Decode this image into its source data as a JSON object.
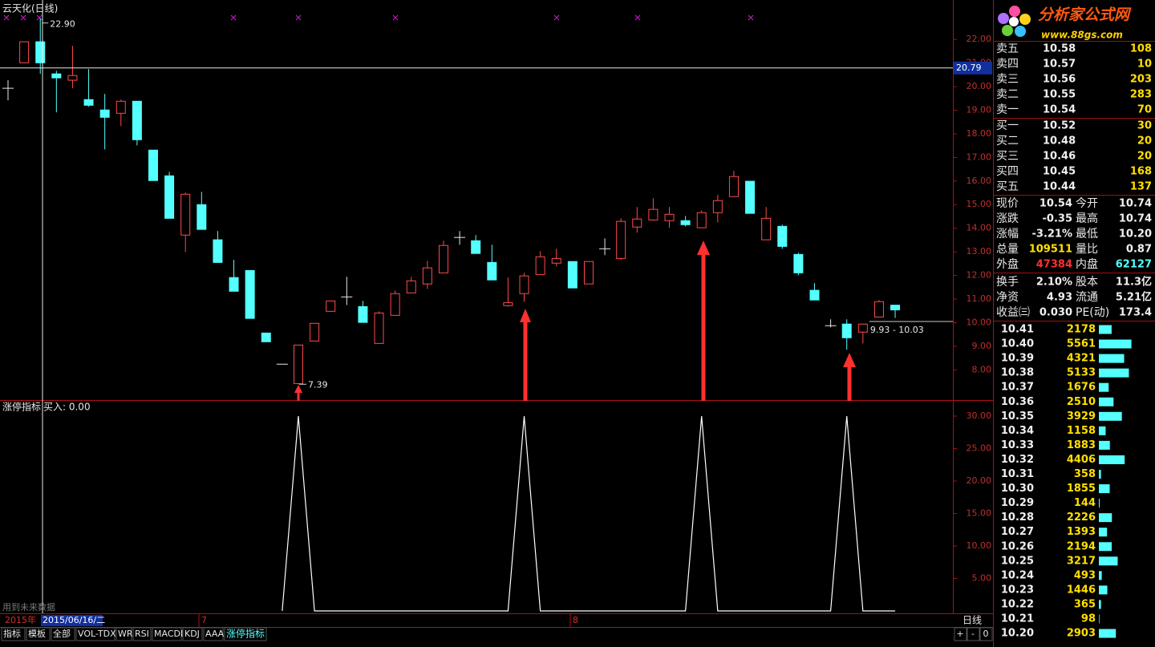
{
  "chart_data": [
    {
      "type": "candlestick",
      "title": "云天化(日线)",
      "open": [
        19.93,
        21.01,
        21.9,
        20.54,
        20.27,
        19.45,
        19.01,
        18.87,
        19.38,
        17.31,
        16.22,
        13.71,
        15.0,
        13.51,
        11.91,
        12.21,
        9.56,
        8.24,
        7.42,
        9.22,
        10.48,
        11.09,
        10.68,
        9.12,
        10.31,
        11.26,
        11.64,
        12.11,
        13.61,
        13.47,
        12.55,
        10.72,
        11.23,
        12.04,
        12.52,
        12.59,
        11.64,
        13.13,
        12.72,
        14.05,
        14.35,
        14.32,
        14.32,
        14.02,
        14.66,
        15.34,
        15.99,
        13.51,
        14.08,
        12.89,
        11.37,
        9.87,
        9.94,
        9.6,
        10.24,
        10.74
      ],
      "high": [
        20.27,
        21.9,
        22.9,
        20.67,
        21.73,
        20.74,
        19.69,
        19.45,
        19.38,
        17.31,
        16.39,
        15.51,
        15.54,
        13.88,
        12.66,
        12.21,
        9.56,
        8.24,
        9.05,
        9.97,
        10.92,
        11.94,
        10.92,
        10.48,
        11.36,
        11.94,
        12.62,
        13.47,
        13.88,
        13.71,
        13.3,
        11.91,
        12.11,
        13.03,
        13.13,
        12.59,
        12.59,
        13.57,
        14.42,
        14.9,
        15.27,
        14.9,
        14.52,
        14.76,
        15.41,
        16.43,
        15.99,
        14.9,
        14.15,
        12.96,
        11.67,
        10.14,
        10.14,
        9.94,
        10.96,
        10.74
      ],
      "low": [
        19.42,
        21.01,
        20.54,
        18.91,
        19.93,
        19.15,
        17.34,
        18.33,
        17.51,
        16.02,
        14.42,
        13.0,
        13.95,
        12.55,
        11.33,
        10.18,
        9.19,
        8.24,
        7.39,
        9.22,
        10.48,
        10.75,
        10.01,
        9.12,
        10.31,
        11.26,
        11.43,
        12.11,
        13.3,
        12.93,
        11.81,
        10.68,
        10.89,
        12.04,
        12.38,
        11.47,
        11.64,
        12.86,
        12.66,
        13.81,
        14.32,
        14.02,
        14.08,
        14.02,
        14.25,
        15.34,
        14.63,
        13.51,
        13.13,
        12.01,
        10.96,
        9.8,
        8.85,
        9.12,
        10.24,
        10.2
      ],
      "close": [
        19.93,
        21.9,
        21.01,
        20.37,
        20.47,
        19.21,
        18.7,
        19.38,
        17.75,
        16.02,
        14.42,
        15.44,
        13.95,
        12.55,
        11.33,
        10.18,
        9.19,
        8.24,
        9.05,
        9.97,
        10.92,
        11.09,
        10.01,
        10.41,
        11.23,
        11.77,
        12.32,
        13.27,
        13.61,
        12.93,
        11.81,
        10.85,
        11.98,
        12.79,
        12.72,
        11.47,
        12.59,
        13.13,
        14.29,
        14.39,
        14.8,
        14.59,
        14.15,
        14.66,
        15.17,
        16.19,
        14.63,
        14.42,
        13.23,
        12.11,
        10.96,
        9.87,
        9.36,
        9.94,
        10.89,
        10.54
      ],
      "up_color": "#ff4a4a",
      "down_color": "#54ffff",
      "flat_color": "#e8e8e8",
      "ylim": [
        6.72,
        23.5
      ],
      "yticks": [
        {
          "value": 8,
          "label": "8.00"
        },
        {
          "value": 9,
          "label": "9.00"
        },
        {
          "value": 10,
          "label": "10.00"
        },
        {
          "value": 11,
          "label": "11.00"
        },
        {
          "value": 12,
          "label": "12.00"
        },
        {
          "value": 13,
          "label": "13.00"
        },
        {
          "value": 14,
          "label": "14.00"
        },
        {
          "value": 15,
          "label": "15.00"
        },
        {
          "value": 16,
          "label": "16.00"
        },
        {
          "value": 17,
          "label": "17.00"
        },
        {
          "value": 18,
          "label": "18.00"
        },
        {
          "value": 19,
          "label": "19.00"
        },
        {
          "value": 20,
          "label": "20.00"
        },
        {
          "value": 21,
          "label": "21.00"
        },
        {
          "value": 22,
          "label": "22.00"
        }
      ],
      "crosshair": {
        "value": 20.79,
        "label": "20.79"
      },
      "annotations": [
        "22.90",
        "7.39",
        "9.93 - 10.03"
      ]
    },
    {
      "type": "line",
      "title": "涨停指标",
      "legend": "买入: 0.00",
      "series": [
        {
          "name": "买入",
          "color": "#ffffff",
          "values": [
            null,
            null,
            null,
            null,
            null,
            null,
            null,
            null,
            null,
            null,
            null,
            null,
            null,
            null,
            null,
            null,
            null,
            0,
            30,
            0,
            0,
            0,
            0,
            0,
            0,
            0,
            0,
            0,
            0,
            0,
            0,
            0,
            30,
            0,
            0,
            0,
            0,
            0,
            0,
            0,
            0,
            0,
            0,
            30,
            0,
            0,
            0,
            0,
            0,
            0,
            0,
            0,
            30,
            0,
            0,
            0
          ]
        }
      ],
      "ylim": [
        0,
        32.35
      ],
      "yticks": [
        {
          "value": 5,
          "label": "5.00"
        },
        {
          "value": 10,
          "label": "10.00"
        },
        {
          "value": 15,
          "label": "15.00"
        },
        {
          "value": 20,
          "label": "20.00"
        },
        {
          "value": 25,
          "label": "25.00"
        },
        {
          "value": 30,
          "label": "30.00"
        }
      ]
    }
  ],
  "x_axis": {
    "year": "2015年",
    "cursor_date": "2015/06/16/二",
    "months": [
      "7",
      "8"
    ],
    "period": "日线"
  },
  "future_note": "用到未来数据",
  "tabs": [
    "指标",
    "模板",
    "全部",
    "VOL-TDX",
    "WR",
    "RSI",
    "MACDD",
    "KDJ",
    "AAA",
    "涨停指标"
  ],
  "zoom_buttons": [
    "+",
    "-",
    "0"
  ],
  "logo": {
    "title": "分析家公式网",
    "url": "www.88gs.com"
  },
  "order_book": [
    [
      "卖五",
      "10.58",
      "108"
    ],
    [
      "卖四",
      "10.57",
      "10"
    ],
    [
      "卖三",
      "10.56",
      "203"
    ],
    [
      "卖二",
      "10.55",
      "283"
    ],
    [
      "卖一",
      "10.54",
      "70"
    ],
    [
      "买一",
      "10.52",
      "30"
    ],
    [
      "买二",
      "10.48",
      "20"
    ],
    [
      "买三",
      "10.46",
      "20"
    ],
    [
      "买四",
      "10.45",
      "168"
    ],
    [
      "买五",
      "10.44",
      "137"
    ]
  ],
  "stats": [
    [
      "现价",
      "10.54",
      "今开",
      "10.74"
    ],
    [
      "涨跌",
      "-0.35",
      "最高",
      "10.74"
    ],
    [
      "涨幅",
      "-3.21%",
      "最低",
      "10.20"
    ],
    [
      "总量",
      "109511",
      "量比",
      "0.87"
    ],
    [
      "外盘",
      "47384",
      "内盘",
      "62127"
    ],
    [
      "换手",
      "2.10%",
      "股本",
      "11.3亿"
    ],
    [
      "净资",
      "4.93",
      "流通",
      "5.21亿"
    ],
    [
      "收益㈢",
      "0.030",
      "PE(动)",
      "173.4"
    ]
  ],
  "price_volume": {
    "prices": [
      "10.41",
      "10.40",
      "10.39",
      "10.38",
      "10.37",
      "10.36",
      "10.35",
      "10.34",
      "10.33",
      "10.32",
      "10.31",
      "10.30",
      "10.29",
      "10.28",
      "10.27",
      "10.26",
      "10.25",
      "10.24",
      "10.23",
      "10.22",
      "10.21",
      "10.20"
    ],
    "volumes": [
      2178,
      5561,
      4321,
      5133,
      1676,
      2510,
      3929,
      1158,
      1883,
      4406,
      358,
      1855,
      144,
      2226,
      1393,
      2194,
      3217,
      493,
      1446,
      365,
      98,
      2903
    ]
  }
}
